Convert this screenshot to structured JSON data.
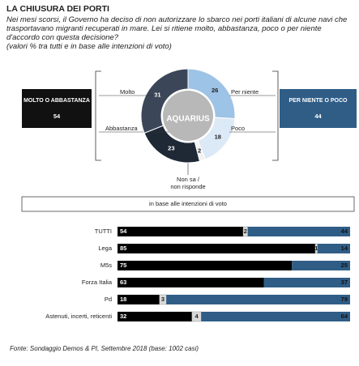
{
  "title": "LA CHIUSURA  DEI PORTI",
  "question": "Nei mesi scorsi, il Governo ha deciso di non autorizzare  lo sbarco nei porti italiani di alcune navi che trasportavano migranti recuperati in mare. Lei si ritiene molto, abbastanza, poco o per niente d'accordo con questa decisione?",
  "note": "(valori % tra tutti e in base alle intenzioni di voto)",
  "source": "Fonte: Sondaggio Demos & PI, Settembre 2018 (base: 1002 casi)",
  "chart_data": [
    {
      "type": "pie",
      "center_label": "AQUARIUS",
      "categories": [
        "Per niente",
        "Poco",
        "Non sa / non risponde",
        "Abbastanza",
        "Molto"
      ],
      "values": [
        26,
        18,
        2,
        23,
        31
      ],
      "colors": [
        "#9dc3e6",
        "#dce9f6",
        "#f2f2f2",
        "#1f2936",
        "#3b4758"
      ],
      "groups": [
        {
          "label": "MOLTO O ABBASTANZA",
          "value": 54,
          "color": "#111111"
        },
        {
          "label": "PER NIENTE  O POCO",
          "value": 44,
          "color": "#2f5d86"
        }
      ]
    },
    {
      "type": "bar",
      "subtitle": "in base alle intenzioni di voto",
      "categories": [
        "TUTTI",
        "Lega",
        "M5s",
        "Forza Italia",
        "Pd",
        "Astenuti, incerti, reticenti"
      ],
      "series": [
        {
          "color": "#000000",
          "values": [
            54,
            85,
            75,
            63,
            18,
            32
          ]
        },
        {
          "color": "#d9d9d9",
          "values": [
            2,
            1,
            null,
            null,
            3,
            4
          ]
        },
        {
          "color": "#2f5d86",
          "values": [
            44,
            14,
            25,
            37,
            79,
            64
          ]
        }
      ]
    }
  ]
}
